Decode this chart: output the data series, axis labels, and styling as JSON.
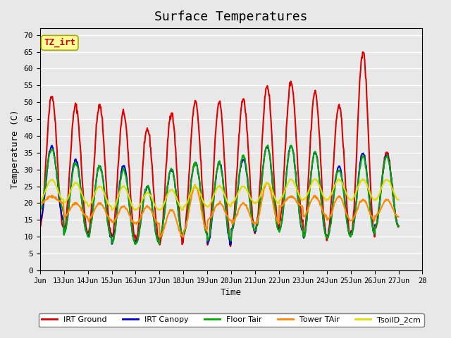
{
  "title": "Surface Temperatures",
  "xlabel": "Time",
  "ylabel": "Temperature (C)",
  "ylim": [
    0,
    72
  ],
  "yticks": [
    0,
    5,
    10,
    15,
    20,
    25,
    30,
    35,
    40,
    45,
    50,
    55,
    60,
    65,
    70
  ],
  "xtick_positions": [
    0,
    1,
    2,
    3,
    4,
    5,
    6,
    7,
    8,
    9,
    10,
    11,
    12,
    13,
    14,
    15,
    16
  ],
  "xtick_labels": [
    "Jun",
    "13Jun",
    "14Jun",
    "15Jun",
    "16Jun",
    "17Jun",
    "18Jun",
    "19Jun",
    "20Jun",
    "21Jun",
    "22Jun",
    "23Jun",
    "24Jun",
    "25Jun",
    "26Jun",
    "27Jun",
    "28"
  ],
  "legend_entries": [
    "IRT Ground",
    "IRT Canopy",
    "Floor Tair",
    "Tower TAir",
    "TsoilD_2cm"
  ],
  "line_colors": [
    "#dd0000",
    "#0000cc",
    "#00aa00",
    "#ff8800",
    "#dddd00"
  ],
  "line_widths": [
    1.5,
    1.5,
    1.5,
    1.5,
    1.5
  ],
  "tz_label": "TZ_irt",
  "bg_color": "#e8e8e8",
  "plot_bg": "#e8e8e8",
  "grid_color": "#ffffff",
  "n_days": 15,
  "n_points_per_day": 48,
  "irt_ground_peaks": [
    52,
    49,
    49,
    47,
    42,
    47,
    50,
    50,
    51,
    55,
    56,
    53,
    49,
    65,
    35
  ],
  "irt_ground_mins": [
    13,
    12,
    11,
    10,
    9,
    8,
    11,
    8,
    12,
    12,
    15,
    10,
    10,
    11,
    13
  ],
  "canopy_peaks": [
    37,
    33,
    31,
    31,
    25,
    30,
    32,
    32,
    33,
    37,
    37,
    35,
    31,
    35,
    34
  ],
  "canopy_mins": [
    15,
    11,
    10,
    8,
    8,
    10,
    11,
    8,
    12,
    12,
    12,
    10,
    10,
    11,
    13
  ],
  "floor_tair_peaks": [
    36,
    32,
    31,
    30,
    25,
    30,
    32,
    32,
    34,
    37,
    37,
    35,
    30,
    34,
    34
  ],
  "floor_tair_mins": [
    18,
    11,
    10,
    8,
    8,
    10,
    11,
    9,
    12,
    12,
    12,
    10,
    10,
    11,
    13
  ],
  "tower_tair_peaks": [
    22,
    20,
    20,
    19,
    19,
    18,
    25,
    20,
    20,
    26,
    22,
    22,
    22,
    21,
    21
  ],
  "tower_tair_mins": [
    20,
    16,
    15,
    14,
    14,
    10,
    12,
    15,
    14,
    14,
    19,
    16,
    15,
    15,
    16
  ],
  "tsoil_peaks": [
    27,
    26,
    25,
    25,
    23,
    24,
    25,
    25,
    25,
    26,
    27,
    27,
    27,
    27,
    27
  ],
  "tsoil_mins": [
    21,
    20,
    19,
    18,
    18,
    18,
    19,
    19,
    20,
    20,
    21,
    21,
    21,
    21,
    21
  ]
}
